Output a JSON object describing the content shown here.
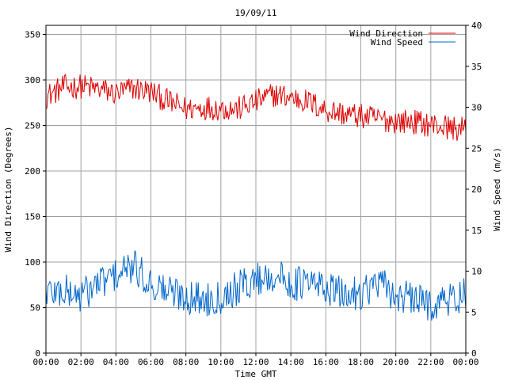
{
  "chart_data": {
    "type": "line",
    "title": "19/09/11",
    "xlabel": "Time GMT",
    "ylabel_left": "Wind Direction (Degrees)",
    "ylabel_right": "Wind Speed (m/s)",
    "x_ticks": [
      "00:00",
      "02:00",
      "04:00",
      "06:00",
      "08:00",
      "10:00",
      "12:00",
      "14:00",
      "16:00",
      "18:00",
      "20:00",
      "22:00",
      "00:00"
    ],
    "x_range_hours": [
      0,
      24
    ],
    "ylim_left": [
      0,
      360
    ],
    "y_ticks_left": [
      0,
      50,
      100,
      150,
      200,
      250,
      300,
      350
    ],
    "ylim_right": [
      0,
      40
    ],
    "y_ticks_right": [
      0,
      5,
      10,
      15,
      20,
      25,
      30,
      35,
      40
    ],
    "grid": true,
    "legend_position": "top-right",
    "series": [
      {
        "name": "Wind Direction",
        "axis": "left",
        "color": "#dd0000",
        "x_hours": [
          0,
          1,
          2,
          3,
          4,
          5,
          6,
          7,
          8,
          9,
          10,
          11,
          12,
          13,
          14,
          15,
          16,
          17,
          18,
          19,
          20,
          21,
          22,
          23,
          24
        ],
        "values": [
          282,
          292,
          293,
          290,
          285,
          291,
          287,
          276,
          268,
          270,
          269,
          268,
          276,
          284,
          281,
          276,
          267,
          263,
          260,
          257,
          255,
          254,
          251,
          248,
          245
        ]
      },
      {
        "name": "Wind Speed",
        "axis": "right",
        "color": "#0066cc",
        "x_hours": [
          0,
          1,
          2,
          3,
          4,
          5,
          6,
          7,
          8,
          9,
          10,
          11,
          12,
          13,
          14,
          15,
          16,
          17,
          18,
          19,
          20,
          21,
          22,
          23,
          24
        ],
        "values": [
          7.5,
          7.5,
          7.0,
          8.5,
          9.5,
          10.5,
          8.5,
          7.5,
          7.0,
          6.5,
          7.0,
          8.0,
          9.0,
          9.5,
          8.5,
          8.5,
          8.0,
          7.0,
          7.5,
          8.5,
          7.0,
          6.5,
          6.0,
          6.5,
          7.0
        ]
      }
    ]
  }
}
